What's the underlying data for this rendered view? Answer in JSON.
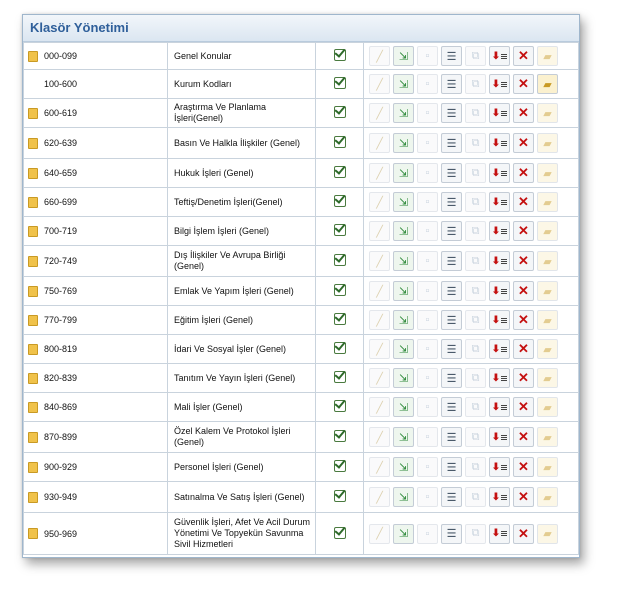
{
  "window": {
    "title": "Klasör Yönetimi"
  },
  "icons": {
    "folder": "folder-icon",
    "check": "check-icon",
    "edit": "pencil-icon",
    "move": "move-icon",
    "add": "add-icon",
    "list": "list-icon",
    "copy": "copy-icon",
    "sort": "sort-icon",
    "delete": "delete-icon",
    "open": "open-folder-icon"
  },
  "rows": [
    {
      "code": "000-099",
      "name": "Genel Konular",
      "folder": true,
      "open_enabled": false
    },
    {
      "code": "100-600",
      "name": "Kurum Kodları",
      "folder": false,
      "open_enabled": true
    },
    {
      "code": "600-619",
      "name": "Araştırma Ve Planlama İşleri(Genel)",
      "folder": true,
      "open_enabled": false
    },
    {
      "code": "620-639",
      "name": "Basın Ve Halkla İlişkiler (Genel)",
      "folder": true,
      "open_enabled": false
    },
    {
      "code": "640-659",
      "name": "Hukuk İşleri (Genel)",
      "folder": true,
      "open_enabled": false
    },
    {
      "code": "660-699",
      "name": "Teftiş/Denetim İşleri(Genel)",
      "folder": true,
      "open_enabled": false
    },
    {
      "code": "700-719",
      "name": "Bilgi İşlem İşleri (Genel)",
      "folder": true,
      "open_enabled": false
    },
    {
      "code": "720-749",
      "name": "Dış İlişkiler Ve Avrupa Birliği (Genel)",
      "folder": true,
      "open_enabled": false
    },
    {
      "code": "750-769",
      "name": "Emlak Ve Yapım İşleri (Genel)",
      "folder": true,
      "open_enabled": false
    },
    {
      "code": "770-799",
      "name": "Eğitim İşleri (Genel)",
      "folder": true,
      "open_enabled": false
    },
    {
      "code": "800-819",
      "name": "İdari Ve Sosyal İşler (Genel)",
      "folder": true,
      "open_enabled": false
    },
    {
      "code": "820-839",
      "name": "Tanıtım Ve Yayın İşleri (Genel)",
      "folder": true,
      "open_enabled": false
    },
    {
      "code": "840-869",
      "name": "Mali İşler (Genel)",
      "folder": true,
      "open_enabled": false
    },
    {
      "code": "870-899",
      "name": "Özel Kalem Ve Protokol İşleri (Genel)",
      "folder": true,
      "open_enabled": false
    },
    {
      "code": "900-929",
      "name": "Personel İşleri (Genel)",
      "folder": true,
      "open_enabled": false
    },
    {
      "code": "930-949",
      "name": "Satınalma Ve Satış İşleri (Genel)",
      "folder": true,
      "open_enabled": false
    },
    {
      "code": "950-969",
      "name": "Güvenlik İşleri, Afet Ve Acil Durum Yönetimi Ve Topyekün Savunma Sivil Hizmetleri",
      "folder": true,
      "open_enabled": false
    }
  ]
}
